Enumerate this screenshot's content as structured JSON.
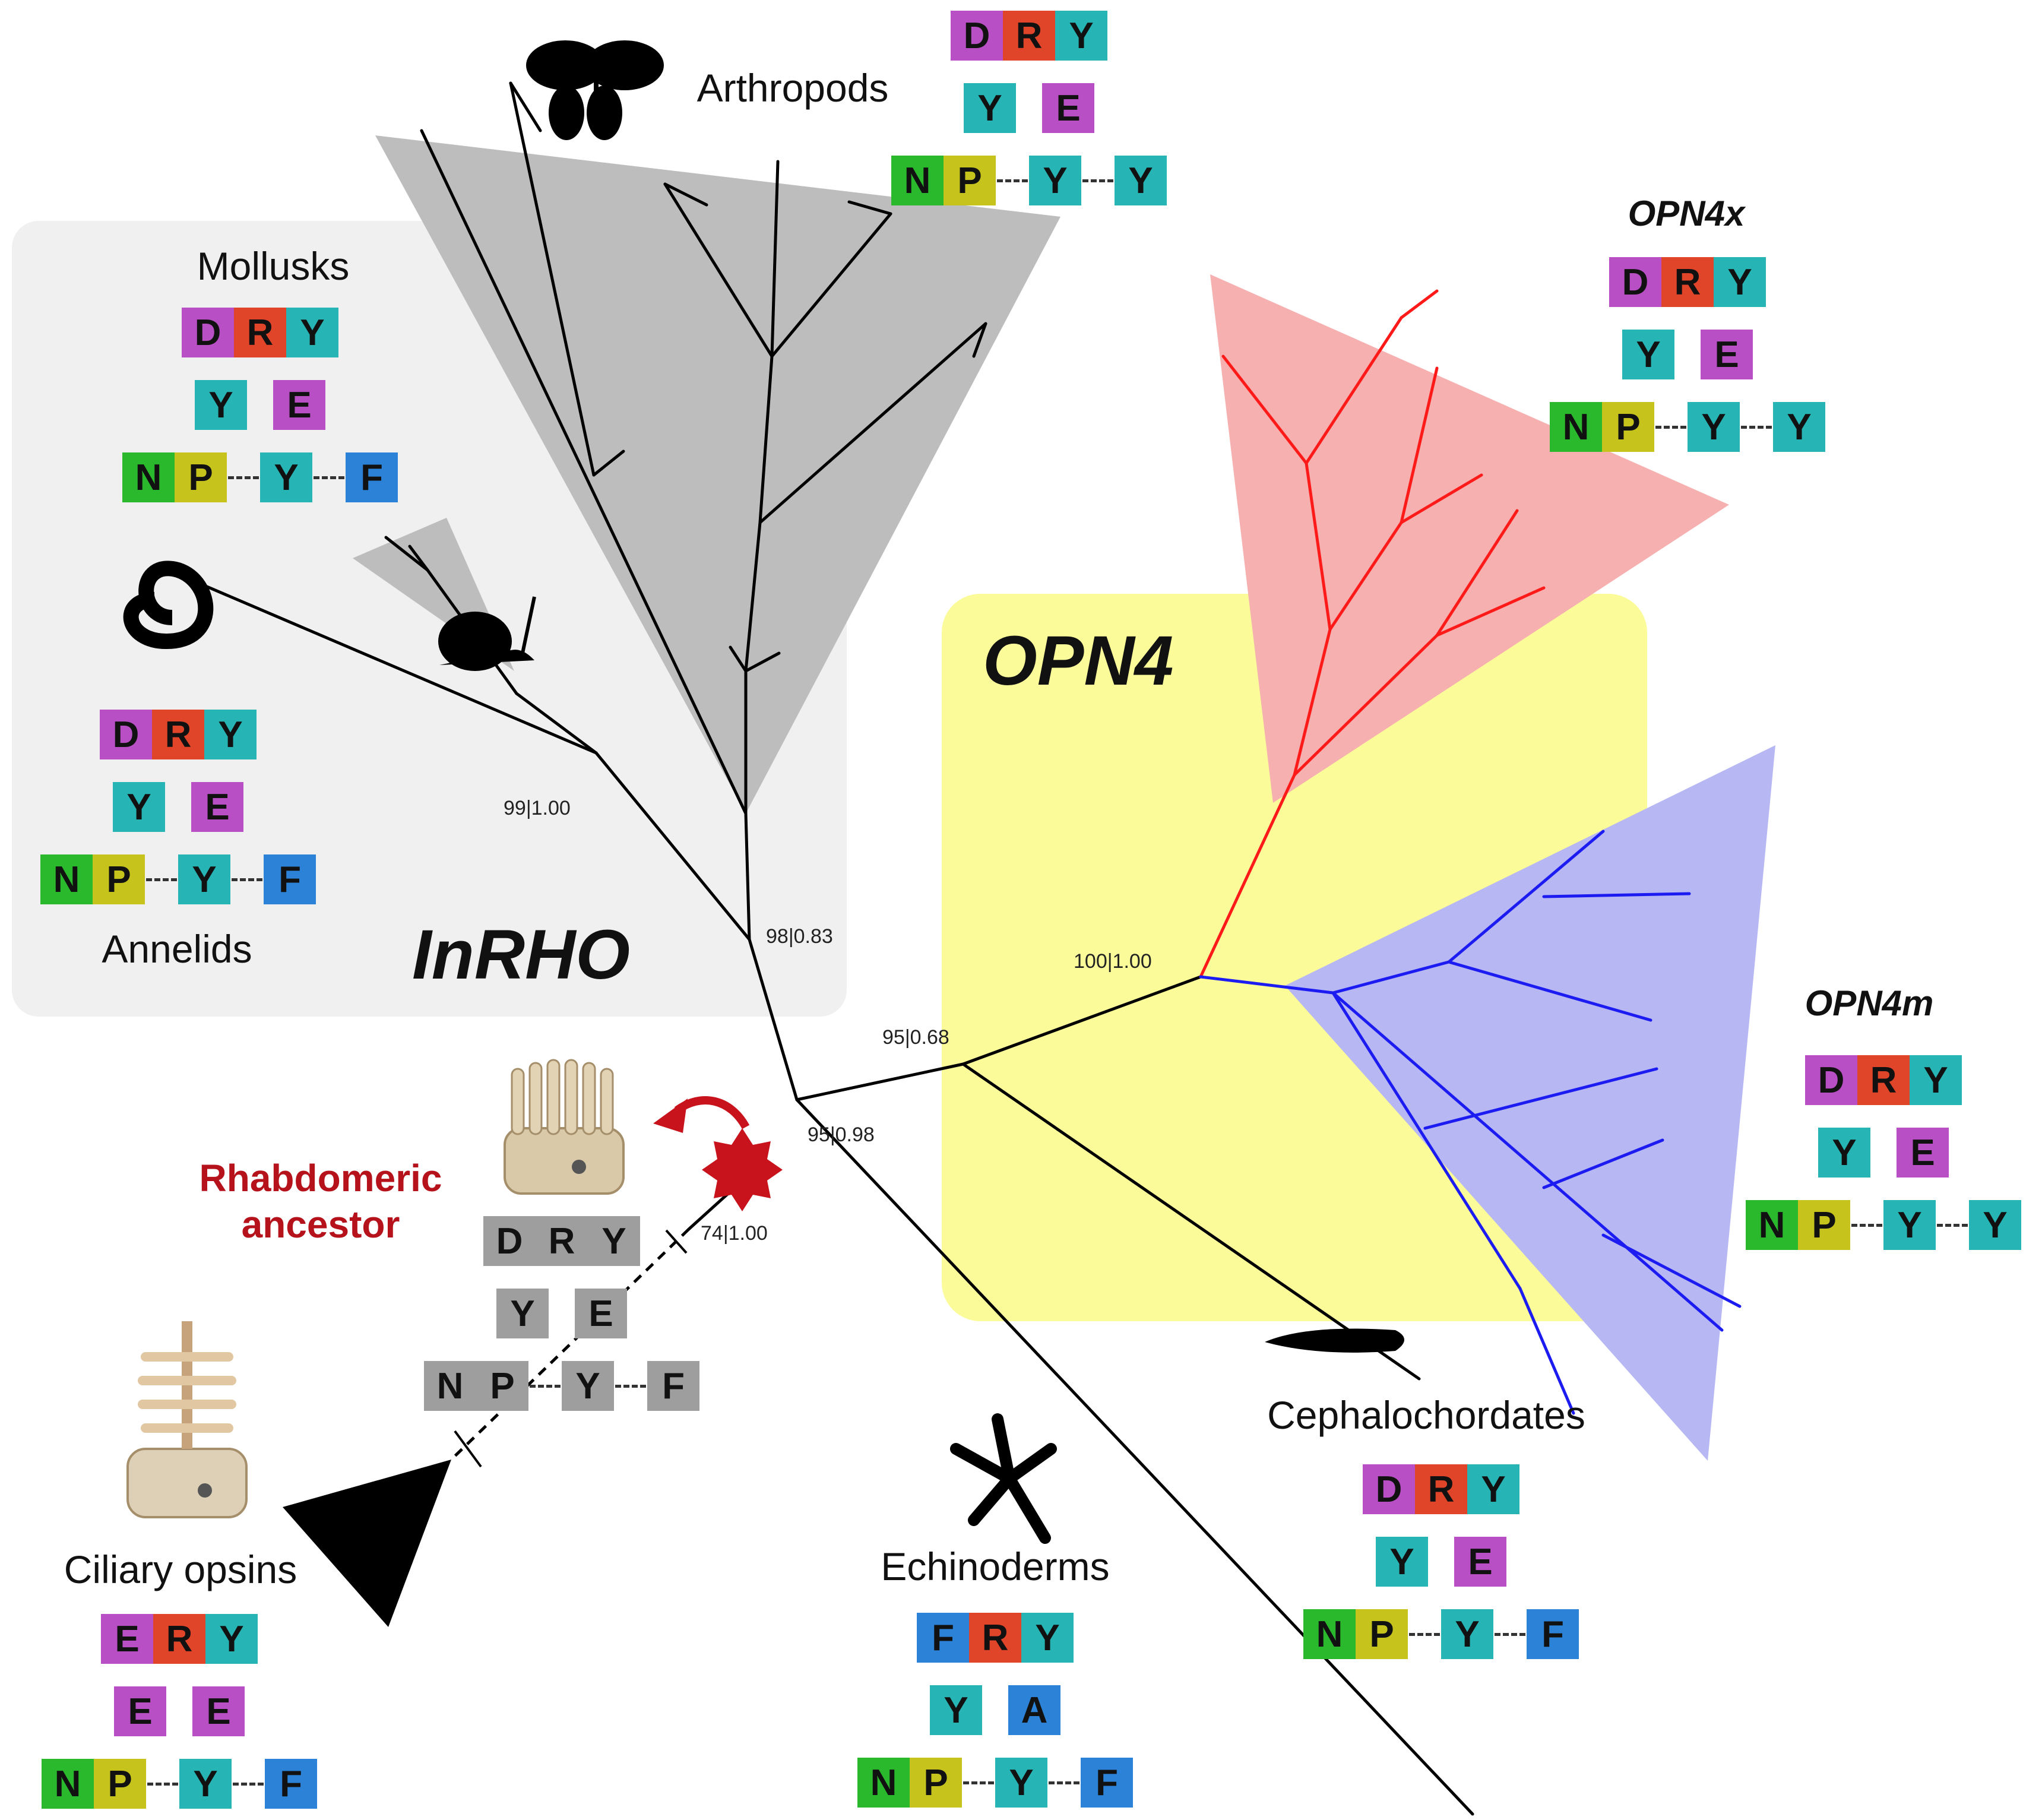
{
  "title": "",
  "colors": {
    "D": "#b94fc4",
    "E": "#b94fc4",
    "R": "#e0452a",
    "Y": "#27b4b4",
    "F": "#2c82d6",
    "N": "#2ab82d",
    "P": "#c6c41c",
    "A": "#2c82d6",
    "ancestor": "#9e9e9e",
    "inrho_bg": "#f0f0f0",
    "arthropod_wedge": "#bdbdbd",
    "opn4_bg": "#fbfb9a",
    "opn4x_wedge": "#f7b0b0",
    "opn4m_wedge": "#b7b7f4",
    "opn4x_tree": "#ff1a1a",
    "opn4m_tree": "#1c1cf2",
    "ancestor_star": "#c8131d"
  },
  "groups": {
    "inrho": "InRHO",
    "opn4": "OPN4",
    "opn4x": "OPN4x",
    "opn4m": "OPN4m"
  },
  "clades": {
    "arthropods": "Arthropods",
    "mollusks": "Mollusks",
    "annelids": "Annelids",
    "ciliary": "Ciliary opsins",
    "echinoderms": "Echinoderms",
    "cephalochordates": "Cephalochordates",
    "ancestor_line1": "Rhabdomeric",
    "ancestor_line2": "ancestor"
  },
  "support_values": {
    "annelid_node": "99|1.00",
    "inrho_node": "98|0.83",
    "opn4_node": "95|0.68",
    "root_node": "95|0.98",
    "ciliary_node": "74|1.00",
    "opn4_split": "100|1.00"
  },
  "icons": [
    "butterfly-icon",
    "snail-icon",
    "worm-icon",
    "starfish-icon",
    "lancelet-icon",
    "rhabdomeric-cell-icon",
    "ciliary-cell-icon",
    "red-star-icon"
  ],
  "motifs": {
    "arthropods": [
      [
        "D",
        "R",
        "Y"
      ],
      [
        "Y",
        "",
        "E"
      ],
      [
        "N",
        "P",
        "-",
        "Y",
        "-",
        "Y"
      ]
    ],
    "mollusks": [
      [
        "D",
        "R",
        "Y"
      ],
      [
        "Y",
        "",
        "E"
      ],
      [
        "N",
        "P",
        "-",
        "Y",
        "-",
        "F"
      ]
    ],
    "annelids": [
      [
        "D",
        "R",
        "Y"
      ],
      [
        "Y",
        "",
        "E"
      ],
      [
        "N",
        "P",
        "-",
        "Y",
        "-",
        "F"
      ]
    ],
    "opn4x": [
      [
        "D",
        "R",
        "Y"
      ],
      [
        "Y",
        "",
        "E"
      ],
      [
        "N",
        "P",
        "-",
        "Y",
        "-",
        "Y"
      ]
    ],
    "opn4m": [
      [
        "D",
        "R",
        "Y"
      ],
      [
        "Y",
        "",
        "E"
      ],
      [
        "N",
        "P",
        "-",
        "Y",
        "-",
        "Y"
      ]
    ],
    "cephalochordates": [
      [
        "D",
        "R",
        "Y"
      ],
      [
        "Y",
        "",
        "E"
      ],
      [
        "N",
        "P",
        "-",
        "Y",
        "-",
        "F"
      ]
    ],
    "echinoderms": [
      [
        "F",
        "R",
        "Y"
      ],
      [
        "Y",
        "",
        "A"
      ],
      [
        "N",
        "P",
        "-",
        "Y",
        "-",
        "F"
      ]
    ],
    "ciliary": [
      [
        "E",
        "R",
        "Y"
      ],
      [
        "E",
        "",
        "E"
      ],
      [
        "N",
        "P",
        "-",
        "Y",
        "-",
        "F"
      ]
    ],
    "ancestor": [
      [
        "D",
        "R",
        "Y"
      ],
      [
        "Y",
        "",
        "E"
      ],
      [
        "N",
        "P",
        "-",
        "Y",
        "-",
        "F"
      ]
    ]
  }
}
